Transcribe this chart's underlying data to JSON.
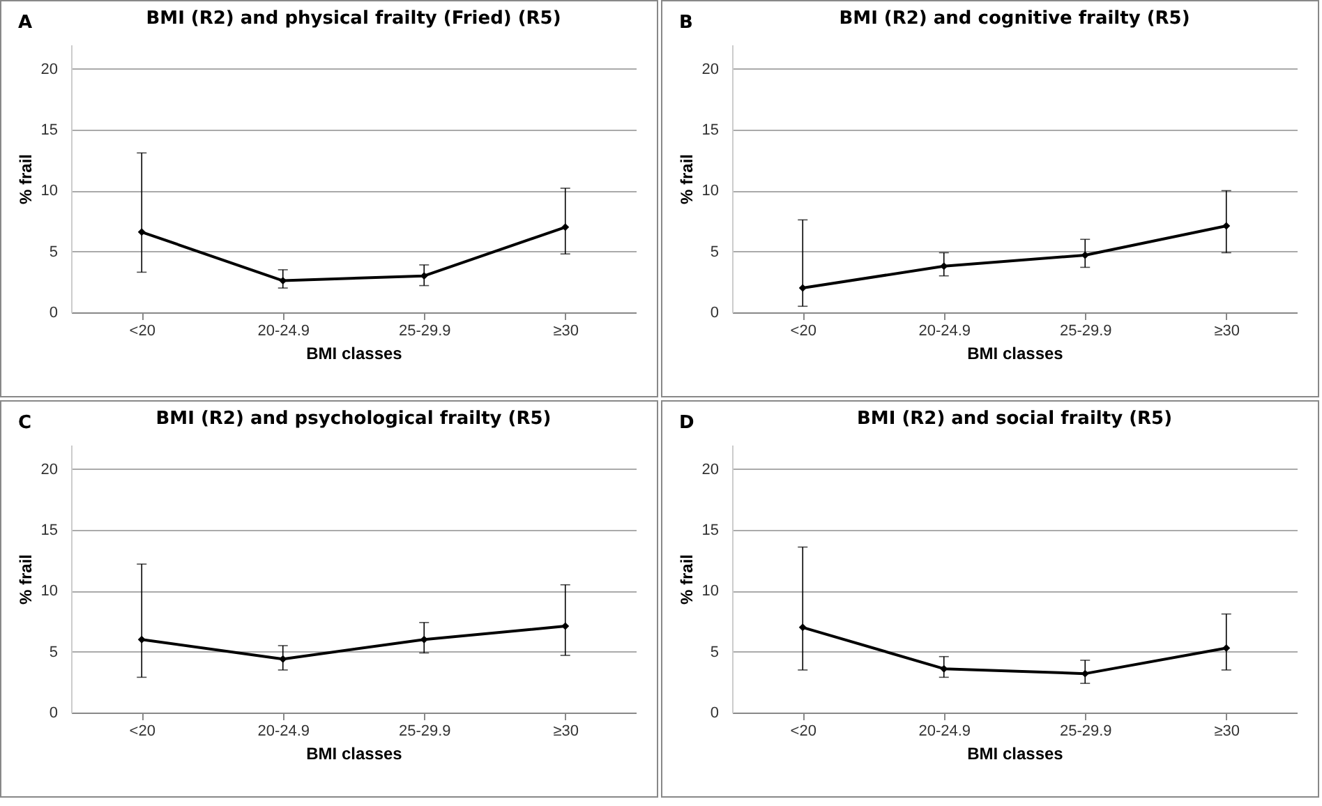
{
  "chart_data": [
    {
      "type": "line",
      "title": "BMI (R2) and physical frailty (Fried) (R5)",
      "annotations": [
        "A"
      ],
      "xlabel": "BMI classes",
      "ylabel": "% frail",
      "categories": [
        "<20",
        "20-24.9",
        "25-29.9",
        "≥30"
      ],
      "series": [
        {
          "color": "#000000",
          "values": [
            6.6,
            2.6,
            3.0,
            7.0
          ],
          "errors": [
            [
              3.3,
              13.1
            ],
            [
              2.0,
              3.5
            ],
            [
              2.2,
              3.9
            ],
            [
              4.8,
              10.2
            ]
          ]
        }
      ],
      "ylim": [
        0,
        22
      ],
      "yticks": [
        0,
        5,
        10,
        15,
        20
      ],
      "grid": "y",
      "legend": false,
      "marker": "diamond",
      "line_style": "solid"
    },
    {
      "type": "line",
      "title": "BMI (R2) and cognitive frailty (R5)",
      "annotations": [
        "B"
      ],
      "xlabel": "BMI classes",
      "ylabel": "% frail",
      "categories": [
        "<20",
        "20-24.9",
        "25-29.9",
        "≥30"
      ],
      "series": [
        {
          "color": "#000000",
          "values": [
            2.0,
            3.8,
            4.7,
            7.1
          ],
          "errors": [
            [
              0.5,
              7.6
            ],
            [
              3.0,
              4.9
            ],
            [
              3.7,
              6.0
            ],
            [
              4.9,
              10.0
            ]
          ]
        }
      ],
      "ylim": [
        0,
        22
      ],
      "yticks": [
        0,
        5,
        10,
        15,
        20
      ],
      "grid": "y",
      "legend": false,
      "marker": "diamond",
      "line_style": "solid"
    },
    {
      "type": "line",
      "title": "BMI (R2) and psychological frailty (R5)",
      "annotations": [
        "C"
      ],
      "xlabel": "BMI classes",
      "ylabel": "% frail",
      "categories": [
        "<20",
        "20-24.9",
        "25-29.9",
        "≥30"
      ],
      "series": [
        {
          "color": "#000000",
          "values": [
            6.0,
            4.4,
            6.0,
            7.1
          ],
          "errors": [
            [
              2.9,
              12.2
            ],
            [
              3.5,
              5.5
            ],
            [
              4.9,
              7.4
            ],
            [
              4.7,
              10.5
            ]
          ]
        }
      ],
      "ylim": [
        0,
        22
      ],
      "yticks": [
        0,
        5,
        10,
        15,
        20
      ],
      "grid": "y",
      "legend": false,
      "marker": "diamond",
      "line_style": "solid"
    },
    {
      "type": "line",
      "title": "BMI (R2) and social frailty (R5)",
      "annotations": [
        "D"
      ],
      "xlabel": "BMI classes",
      "ylabel": "% frail",
      "categories": [
        "<20",
        "20-24.9",
        "25-29.9",
        "≥30"
      ],
      "series": [
        {
          "color": "#000000",
          "values": [
            7.0,
            3.6,
            3.2,
            5.3
          ],
          "errors": [
            [
              3.5,
              13.6
            ],
            [
              2.9,
              4.6
            ],
            [
              2.4,
              4.3
            ],
            [
              3.5,
              8.1
            ]
          ]
        }
      ],
      "ylim": [
        0,
        22
      ],
      "yticks": [
        0,
        5,
        10,
        15,
        20
      ],
      "grid": "y",
      "legend": false,
      "marker": "diamond",
      "line_style": "solid"
    }
  ]
}
